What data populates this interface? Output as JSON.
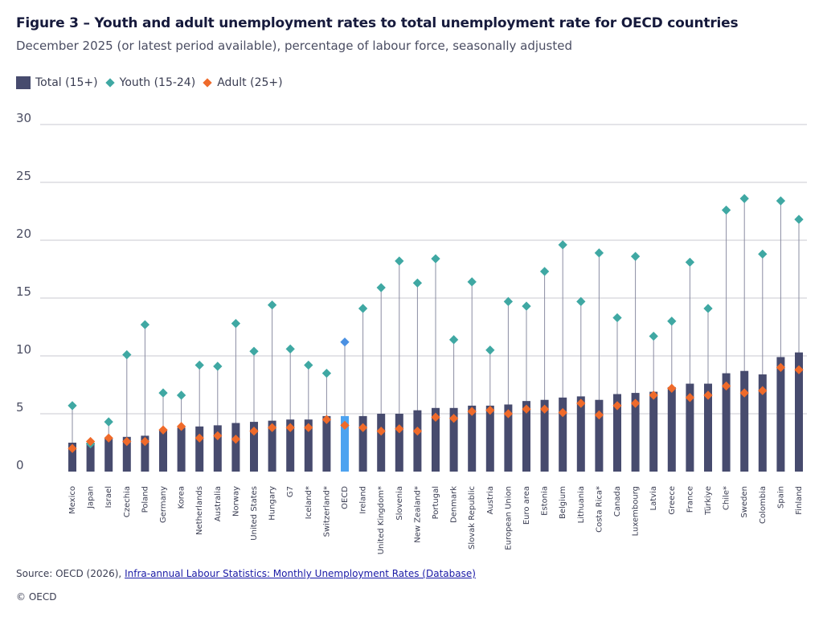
{
  "header": {
    "title": "Figure 3 – Youth and adult unemployment rates to total unemployment rate for OECD countries",
    "subtitle": "December 2025 (or latest period available), percentage of labour force, seasonally adjusted"
  },
  "legend": {
    "total": "Total (15+)",
    "youth": "Youth (15-24)",
    "adult": "Adult (25+)"
  },
  "colors": {
    "total": "#474b6e",
    "oecd": "#4da3f0",
    "youth": "#3fa8a3",
    "youth_oecd": "#4a90e2",
    "adult": "#ef6a2a",
    "grid": "#c8c8d0",
    "stem": "#8a8ca2"
  },
  "chart_data": {
    "type": "bar",
    "title": "Figure 3 – Youth and adult unemployment rates to total unemployment rate for OECD countries",
    "ylim": [
      0,
      30
    ],
    "yticks": [
      0,
      5,
      10,
      15,
      20,
      25,
      30
    ],
    "highlight": "OECD",
    "categories": [
      "Mexico",
      "Japan",
      "Israel",
      "Czechia",
      "Poland",
      "Germany",
      "Korea",
      "Netherlands",
      "Australia",
      "Norway",
      "United States",
      "Hungary",
      "G7",
      "Iceland*",
      "Switzerland*",
      "OECD",
      "Ireland",
      "United Kingdom*",
      "Slovenia",
      "New Zealand*",
      "Portugal",
      "Denmark",
      "Slovak Republic",
      "Austria",
      "European Union",
      "Euro area",
      "Estonia",
      "Belgium",
      "Lithuania",
      "Costa Rica*",
      "Canada",
      "Luxembourg",
      "Latvia",
      "Greece",
      "France",
      "Türkiye",
      "Chile*",
      "Sweden",
      "Colombia",
      "Spain",
      "Finland"
    ],
    "series": [
      {
        "name": "Total (15+)",
        "type": "bar",
        "values": [
          2.5,
          2.5,
          2.9,
          3.0,
          3.1,
          3.6,
          3.8,
          3.9,
          4.0,
          4.2,
          4.3,
          4.4,
          4.5,
          4.5,
          4.8,
          4.8,
          4.8,
          5.0,
          5.0,
          5.3,
          5.5,
          5.5,
          5.7,
          5.7,
          5.8,
          6.1,
          6.2,
          6.4,
          6.5,
          6.2,
          6.7,
          6.8,
          6.9,
          7.3,
          7.6,
          7.6,
          8.5,
          8.7,
          8.4,
          9.9,
          10.3
        ]
      },
      {
        "name": "Youth (15-24)",
        "type": "marker",
        "values": [
          5.7,
          2.4,
          4.3,
          10.1,
          12.7,
          6.8,
          6.6,
          9.2,
          9.1,
          12.8,
          10.4,
          14.4,
          10.6,
          9.2,
          8.5,
          11.2,
          14.1,
          15.9,
          18.2,
          16.3,
          18.4,
          11.4,
          16.4,
          10.5,
          14.7,
          14.3,
          17.3,
          19.6,
          14.7,
          18.9,
          13.3,
          18.6,
          11.7,
          13.0,
          18.1,
          14.1,
          22.6,
          23.6,
          18.8,
          23.4,
          21.8
        ]
      },
      {
        "name": "Adult (25+)",
        "type": "marker",
        "values": [
          2.0,
          2.6,
          2.9,
          2.6,
          2.6,
          3.6,
          3.9,
          2.9,
          3.1,
          2.8,
          3.5,
          3.8,
          3.8,
          3.8,
          4.5,
          4.0,
          3.8,
          3.5,
          3.7,
          3.5,
          4.7,
          4.6,
          5.2,
          5.3,
          5.0,
          5.4,
          5.4,
          5.1,
          5.9,
          4.9,
          5.7,
          5.9,
          6.6,
          7.2,
          6.4,
          6.6,
          7.4,
          6.8,
          7.0,
          9.0,
          8.8
        ]
      }
    ]
  },
  "footer": {
    "source_prefix": "Source: OECD (2026), ",
    "source_link": "Infra-annual Labour Statistics: Monthly Unemployment Rates (Database)",
    "copyright": "© OECD"
  }
}
